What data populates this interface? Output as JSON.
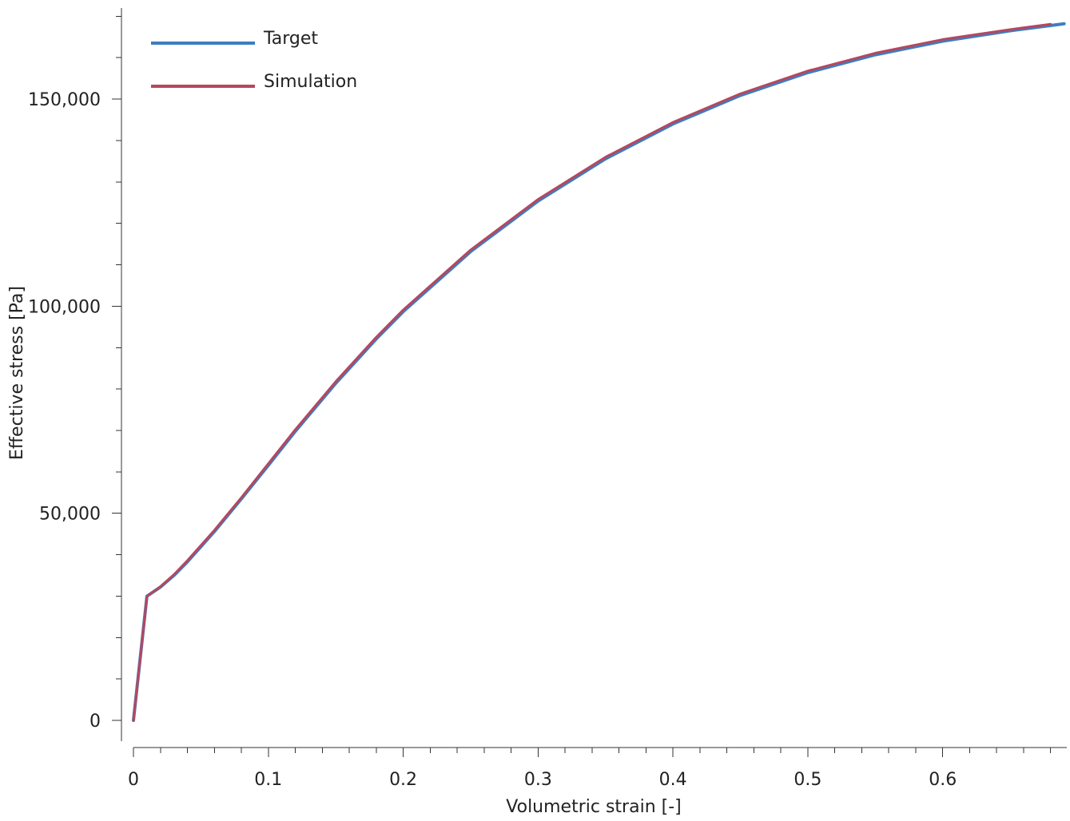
{
  "chart_data": {
    "type": "line",
    "title": "",
    "xlabel": "Volumetric strain [-]",
    "ylabel": "Effective stress [Pa]",
    "xlim": [
      0,
      0.692
    ],
    "ylim": [
      -5000,
      172000
    ],
    "x_ticks": [
      {
        "value": 0,
        "label": "0"
      },
      {
        "value": 0.1,
        "label": "0.1"
      },
      {
        "value": 0.2,
        "label": "0.2"
      },
      {
        "value": 0.3,
        "label": "0.3"
      },
      {
        "value": 0.4,
        "label": "0.4"
      },
      {
        "value": 0.5,
        "label": "0.5"
      },
      {
        "value": 0.6,
        "label": "0.6"
      }
    ],
    "x_minor_step": 0.02,
    "y_ticks": [
      {
        "value": 0,
        "label": "0"
      },
      {
        "value": 50000,
        "label": "50,000"
      },
      {
        "value": 100000,
        "label": "100,000"
      },
      {
        "value": 150000,
        "label": "150,000"
      }
    ],
    "y_minor_step": 10000,
    "grid": false,
    "legend_position": "top-left",
    "series": [
      {
        "name": "Target",
        "color": "#3d7ebf",
        "x": [
          0,
          0.01,
          0.02,
          0.03,
          0.04,
          0.06,
          0.08,
          0.1,
          0.12,
          0.15,
          0.18,
          0.2,
          0.25,
          0.3,
          0.35,
          0.4,
          0.45,
          0.5,
          0.55,
          0.6,
          0.65,
          0.69
        ],
        "y": [
          0,
          30000,
          32200,
          35000,
          38300,
          45600,
          53500,
          61600,
          69800,
          81400,
          92100,
          98700,
          113200,
          125400,
          135600,
          144000,
          150900,
          156400,
          160700,
          164000,
          166500,
          168200
        ]
      },
      {
        "name": "Simulation",
        "color": "#b5475f",
        "x": [
          0,
          0.01,
          0.02,
          0.03,
          0.04,
          0.06,
          0.08,
          0.1,
          0.12,
          0.15,
          0.18,
          0.2,
          0.25,
          0.3,
          0.35,
          0.4,
          0.45,
          0.5,
          0.55,
          0.6,
          0.65,
          0.68
        ],
        "y": [
          0,
          30000,
          32300,
          35200,
          38600,
          45900,
          53800,
          62000,
          70200,
          81800,
          92500,
          99100,
          113600,
          125800,
          136000,
          144400,
          151300,
          156800,
          161100,
          164400,
          166800,
          168100
        ]
      }
    ]
  }
}
